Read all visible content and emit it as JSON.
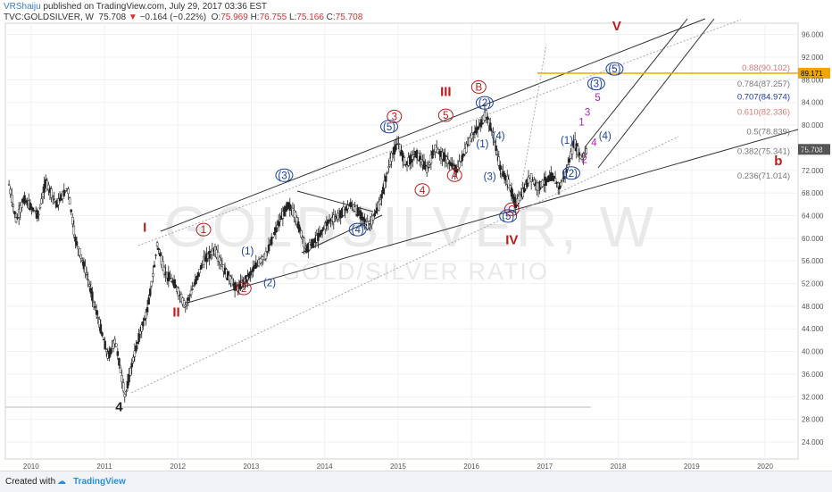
{
  "header": {
    "author": "VRShaiju",
    "published_text": "published on TradingView.com, July 29, 2017 03:36 EST",
    "symbol": "TVC:GOLDSILVER, W",
    "last": "75.708",
    "change_arrow": "▼",
    "change": "−0.164 (−0.22%)",
    "o_label": "O:",
    "o_value": "75.969",
    "h_label": "H:",
    "h_value": "76.755",
    "l_label": "L:",
    "l_value": "75.166",
    "c_label": "C:",
    "c_value": "75.708"
  },
  "footer": {
    "created_with": "Created with",
    "brand": "TradingView"
  },
  "watermark": {
    "main": "GOLDSILVER, W",
    "sub": "GOLD/SILVER RATIO"
  },
  "colors": {
    "wave_red": "#b81c1c",
    "wave_blue": "#1a3f9e",
    "wave_magenta": "#b01fa8",
    "fib_text": "#d67a7a",
    "fib_line": "#f0a500",
    "price_tag": "#555555"
  },
  "chart_data": {
    "type": "candlestick",
    "title": "GOLDSILVER, W",
    "y_ticks": [
      "96.000",
      "92.000",
      "88.000",
      "84.000",
      "80.000",
      "76.000",
      "72.000",
      "68.000",
      "64.000",
      "60.000",
      "56.000",
      "52.000",
      "48.000",
      "44.000",
      "40.000",
      "36.000",
      "32.000",
      "28.000",
      "24.000"
    ],
    "x_ticks": [
      "2010",
      "2011",
      "2012",
      "2013",
      "2014",
      "2015",
      "2016",
      "2017",
      "2018",
      "2019",
      "2020"
    ],
    "ylim": [
      21,
      98
    ],
    "xlim": [
      2009.65,
      2020.45
    ],
    "price_path": [
      [
        2009.7,
        69.5
      ],
      [
        2009.8,
        63
      ],
      [
        2009.9,
        67
      ],
      [
        2010.1,
        64
      ],
      [
        2010.2,
        70
      ],
      [
        2010.35,
        66
      ],
      [
        2010.5,
        69
      ],
      [
        2010.6,
        60
      ],
      [
        2010.75,
        54
      ],
      [
        2010.85,
        49
      ],
      [
        2010.95,
        44
      ],
      [
        2011.05,
        39
      ],
      [
        2011.15,
        42
      ],
      [
        2011.28,
        32
      ],
      [
        2011.38,
        38
      ],
      [
        2011.48,
        43
      ],
      [
        2011.58,
        47
      ],
      [
        2011.68,
        55
      ],
      [
        2011.72,
        59
      ],
      [
        2011.82,
        54
      ],
      [
        2011.95,
        52
      ],
      [
        2012.1,
        48
      ],
      [
        2012.2,
        51
      ],
      [
        2012.35,
        56
      ],
      [
        2012.5,
        58
      ],
      [
        2012.65,
        54
      ],
      [
        2012.8,
        51
      ],
      [
        2012.95,
        53
      ],
      [
        2013.05,
        55
      ],
      [
        2013.2,
        57
      ],
      [
        2013.35,
        62
      ],
      [
        2013.5,
        66
      ],
      [
        2013.6,
        64
      ],
      [
        2013.75,
        58
      ],
      [
        2013.9,
        60
      ],
      [
        2014.05,
        63
      ],
      [
        2014.2,
        64
      ],
      [
        2014.35,
        66
      ],
      [
        2014.5,
        64
      ],
      [
        2014.6,
        62
      ],
      [
        2014.75,
        66
      ],
      [
        2014.9,
        74
      ],
      [
        2015.0,
        77
      ],
      [
        2015.1,
        73
      ],
      [
        2015.25,
        75
      ],
      [
        2015.4,
        72
      ],
      [
        2015.5,
        76
      ],
      [
        2015.65,
        74
      ],
      [
        2015.8,
        72
      ],
      [
        2015.9,
        75
      ],
      [
        2016.0,
        78
      ],
      [
        2016.12,
        80
      ],
      [
        2016.2,
        82
      ],
      [
        2016.3,
        78
      ],
      [
        2016.4,
        72
      ],
      [
        2016.5,
        70
      ],
      [
        2016.6,
        66
      ],
      [
        2016.7,
        68
      ],
      [
        2016.8,
        71
      ],
      [
        2016.9,
        69
      ],
      [
        2017.0,
        70
      ],
      [
        2017.1,
        71
      ],
      [
        2017.2,
        69
      ],
      [
        2017.3,
        72
      ],
      [
        2017.4,
        77
      ],
      [
        2017.5,
        74
      ],
      [
        2017.58,
        75.7
      ]
    ],
    "last_price": "75.708",
    "fib_levels": [
      {
        "label": "0.88(90.102)",
        "value": 90.102,
        "color": "#d67a7a"
      },
      {
        "label": "0.784(87.257)",
        "value": 87.257,
        "color": "#777777"
      },
      {
        "label": "0.707(84.974)",
        "value": 84.974,
        "color": "#1a3f9e"
      },
      {
        "label": "0.610(82.336)",
        "value": 82.336,
        "color": "#d67a7a"
      },
      {
        "label": "0.5(78.839)",
        "value": 78.839,
        "color": "#777777"
      },
      {
        "label": "0.382(75.341)",
        "value": 75.341,
        "color": "#777777"
      },
      {
        "label": "0.236(71.014)",
        "value": 71.014,
        "color": "#777777"
      }
    ],
    "orange_level": {
      "value": 89.171,
      "label": "89.171"
    },
    "wave_labels": [
      {
        "t": "I",
        "x": 2011.55,
        "y": 61.3,
        "color": "#b81c1c",
        "style": "roman"
      },
      {
        "t": "II",
        "x": 2011.98,
        "y": 46.3,
        "color": "#b81c1c",
        "style": "roman"
      },
      {
        "t": "III",
        "x": 2015.65,
        "y": 85.3,
        "color": "#b81c1c",
        "style": "roman"
      },
      {
        "t": "IV",
        "x": 2016.55,
        "y": 59.1,
        "color": "#b81c1c",
        "style": "roman"
      },
      {
        "t": "V",
        "x": 2017.98,
        "y": 96.9,
        "color": "#b81c1c",
        "style": "roman"
      },
      {
        "t": "4",
        "x": 2011.2,
        "y": 29.6,
        "color": "#222222",
        "style": "roman"
      },
      {
        "t": "b",
        "x": 2020.18,
        "y": 73.1,
        "color": "#b81c1c",
        "style": "roman"
      },
      {
        "t": "1",
        "x": 2012.35,
        "y": 60.9,
        "color": "#b81c1c",
        "style": "circle"
      },
      {
        "t": "2",
        "x": 2012.9,
        "y": 50.5,
        "color": "#b81c1c",
        "style": "circle"
      },
      {
        "t": "3",
        "x": 2014.95,
        "y": 80.9,
        "color": "#b81c1c",
        "style": "circle"
      },
      {
        "t": "4",
        "x": 2015.33,
        "y": 67.9,
        "color": "#b81c1c",
        "style": "circle"
      },
      {
        "t": "5",
        "x": 2015.65,
        "y": 81.1,
        "color": "#b81c1c",
        "style": "circle"
      },
      {
        "t": "A",
        "x": 2015.77,
        "y": 70.5,
        "color": "#b81c1c",
        "style": "circle"
      },
      {
        "t": "B",
        "x": 2016.1,
        "y": 86.1,
        "color": "#b81c1c",
        "style": "circle"
      },
      {
        "t": "C",
        "x": 2016.55,
        "y": 64.5,
        "color": "#b81c1c",
        "style": "circle"
      },
      {
        "t": "(1)",
        "x": 2012.95,
        "y": 57.1,
        "color": "#1a3f9e",
        "style": "plain"
      },
      {
        "t": "(2)",
        "x": 2013.25,
        "y": 51.5,
        "color": "#1a3f9e",
        "style": "plain"
      },
      {
        "t": "(3)",
        "x": 2013.45,
        "y": 70.5,
        "color": "#1a3f9e",
        "style": "circle"
      },
      {
        "t": "(4)",
        "x": 2014.45,
        "y": 60.9,
        "color": "#1a3f9e",
        "style": "circle"
      },
      {
        "t": "(5)",
        "x": 2014.88,
        "y": 79.1,
        "color": "#1a3f9e",
        "style": "circle"
      },
      {
        "t": "(1)",
        "x": 2016.15,
        "y": 76.1,
        "color": "#1a3f9e",
        "style": "plain"
      },
      {
        "t": "(2)",
        "x": 2016.18,
        "y": 83.3,
        "color": "#1a3f9e",
        "style": "circle"
      },
      {
        "t": "(3)",
        "x": 2016.25,
        "y": 70.3,
        "color": "#1a3f9e",
        "style": "plain"
      },
      {
        "t": "(4)",
        "x": 2016.37,
        "y": 77.5,
        "color": "#1a3f9e",
        "style": "plain"
      },
      {
        "t": "(5)",
        "x": 2016.5,
        "y": 63.3,
        "color": "#1a3f9e",
        "style": "circle"
      },
      {
        "t": "(1)",
        "x": 2017.3,
        "y": 76.7,
        "color": "#1a3f9e",
        "style": "plain"
      },
      {
        "t": "(2)",
        "x": 2017.36,
        "y": 70.9,
        "color": "#1a3f9e",
        "style": "circle"
      },
      {
        "t": "(3)",
        "x": 2017.7,
        "y": 86.7,
        "color": "#1a3f9e",
        "style": "circle"
      },
      {
        "t": "(4)",
        "x": 2017.82,
        "y": 77.5,
        "color": "#1a3f9e",
        "style": "plain"
      },
      {
        "t": "(5)",
        "x": 2017.95,
        "y": 89.3,
        "color": "#1a3f9e",
        "style": "circle"
      },
      {
        "t": "1",
        "x": 2017.5,
        "y": 79.9,
        "color": "#b01fa8",
        "style": "plain"
      },
      {
        "t": "2",
        "x": 2017.54,
        "y": 73.3,
        "color": "#b01fa8",
        "style": "plain"
      },
      {
        "t": "3",
        "x": 2017.58,
        "y": 81.7,
        "color": "#b01fa8",
        "style": "plain"
      },
      {
        "t": "4",
        "x": 2017.67,
        "y": 76.3,
        "color": "#b01fa8",
        "style": "plain"
      },
      {
        "t": "5",
        "x": 2017.72,
        "y": 84.3,
        "color": "#b01fa8",
        "style": "plain"
      }
    ]
  }
}
